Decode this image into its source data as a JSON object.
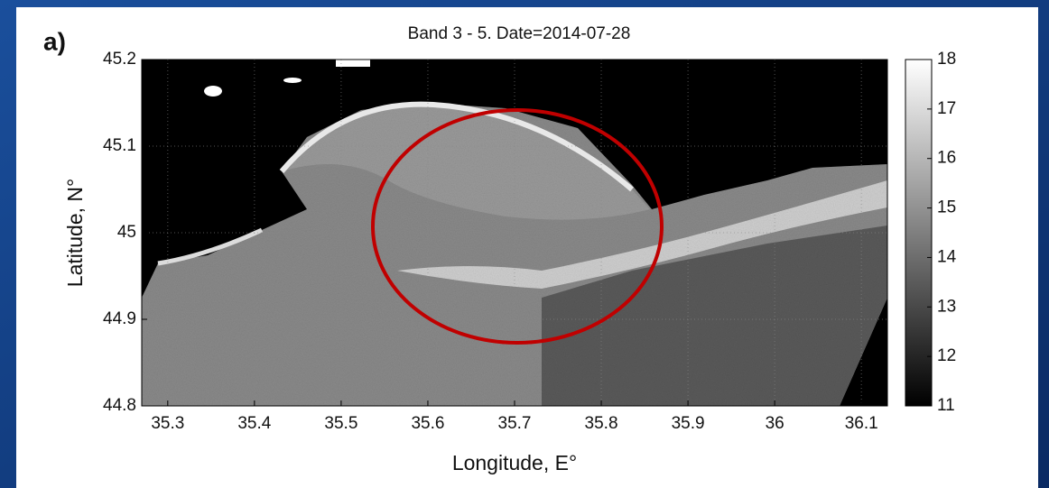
{
  "chart_data": {
    "type": "image",
    "panel_label": "a)",
    "title": "Band 3 - 5. Date=2014-07-28",
    "xlabel": "Longitude, E°",
    "ylabel": "Latitude,  N°",
    "xlim": [
      35.27,
      36.13
    ],
    "xticks": [
      35.3,
      35.4,
      35.5,
      35.6,
      35.7,
      35.8,
      35.9,
      36,
      36.1
    ],
    "ylim": [
      44.8,
      45.2
    ],
    "yticks": [
      44.8,
      44.9,
      45,
      45.1,
      45.2
    ],
    "clim": [
      11,
      18
    ],
    "cticks": [
      11,
      12,
      13,
      14,
      15,
      16,
      17,
      18
    ],
    "colormap": [
      "#000000",
      "#ffffff"
    ],
    "grid": true
  }
}
